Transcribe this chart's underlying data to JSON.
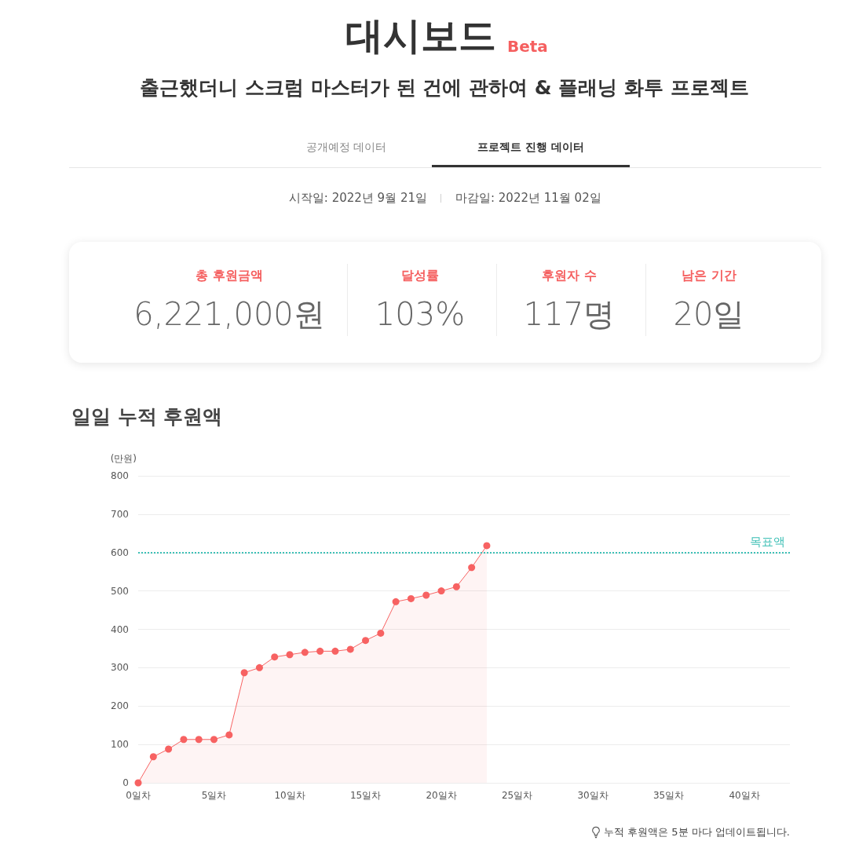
{
  "chart_data": [
    {
      "type": "other",
      "title": "대시보드",
      "subtitle": "출근했더니 스크럼 마스터가 된 건에 관하여 & 플래닝 화투 프로젝트",
      "annotations": [
        "Beta",
        "공개예정 데이터",
        "프로젝트 진행 데이터",
        "시작일: 2022년 9월 21일",
        "마감일: 2022년 11월 02일",
        "총 후원금액",
        "6,221,000원",
        "달성률",
        "103%",
        "후원자 수",
        "117명",
        "남은 기간",
        "20일"
      ]
    },
    {
      "type": "area",
      "title": "일일 누적 후원액",
      "ylabel": "(만원)",
      "x": [
        0,
        1,
        2,
        3,
        4,
        5,
        6,
        7,
        8,
        9,
        10,
        11,
        12,
        13,
        14,
        15,
        16,
        17,
        18,
        19,
        20,
        21,
        22,
        23
      ],
      "series": [
        {
          "color": "#f76262",
          "values": [
            0,
            68,
            88,
            113,
            113,
            113,
            125,
            287,
            300,
            328,
            334,
            340,
            343,
            343,
            348,
            371,
            390,
            472,
            480,
            489,
            500,
            511,
            561,
            618
          ]
        }
      ],
      "xlim": [
        0,
        43
      ],
      "xticks": [
        {
          "value": 0,
          "label": "0일차"
        },
        {
          "value": 5,
          "label": "5일차"
        },
        {
          "value": 10,
          "label": "10일차"
        },
        {
          "value": 15,
          "label": "15일차"
        },
        {
          "value": 20,
          "label": "20일차"
        },
        {
          "value": 25,
          "label": "25일차"
        },
        {
          "value": 30,
          "label": "30일차"
        },
        {
          "value": 35,
          "label": "35일차"
        },
        {
          "value": 40,
          "label": "40일차"
        }
      ],
      "ylim": [
        0,
        800
      ],
      "yticks": [
        0,
        100,
        200,
        300,
        400,
        500,
        600,
        700,
        800
      ],
      "ref_lines": [
        {
          "axis": "y",
          "value": 600,
          "label": "목표액",
          "color": "#3cbfb5",
          "line_style": "dotted"
        }
      ],
      "grid": "y",
      "marker": "circle",
      "line_style": "solid",
      "annotations": [
        "누적 후원액은 5분 마다 업데이트됩니다."
      ]
    }
  ]
}
